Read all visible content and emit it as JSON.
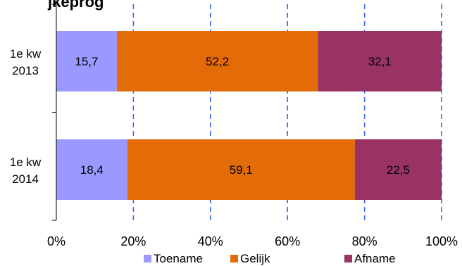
{
  "chart_data": {
    "type": "bar",
    "orientation": "horizontal",
    "stacked": true,
    "title": "jkeprog",
    "categories": [
      [
        "1e kw",
        "2013"
      ],
      [
        "1e kw",
        "2014"
      ]
    ],
    "series": [
      {
        "name": "Toename",
        "values": [
          15.7,
          18.4
        ],
        "labels": [
          "15,7",
          "18,4"
        ],
        "color": "#9999ff"
      },
      {
        "name": "Gelijk",
        "values": [
          52.2,
          59.1
        ],
        "labels": [
          "52,2",
          "59,1"
        ],
        "color": "#e36c09"
      },
      {
        "name": "Afname",
        "values": [
          32.1,
          22.5
        ],
        "labels": [
          "32,1",
          "22,5"
        ],
        "color": "#993366"
      }
    ],
    "x_ticks": [
      "0%",
      "20%",
      "40%",
      "60%",
      "80%",
      "100%"
    ],
    "xlim": [
      0,
      100
    ],
    "grid": "vertical-dashed",
    "gridline_color": "#3366ff",
    "legend_position": "bottom"
  }
}
